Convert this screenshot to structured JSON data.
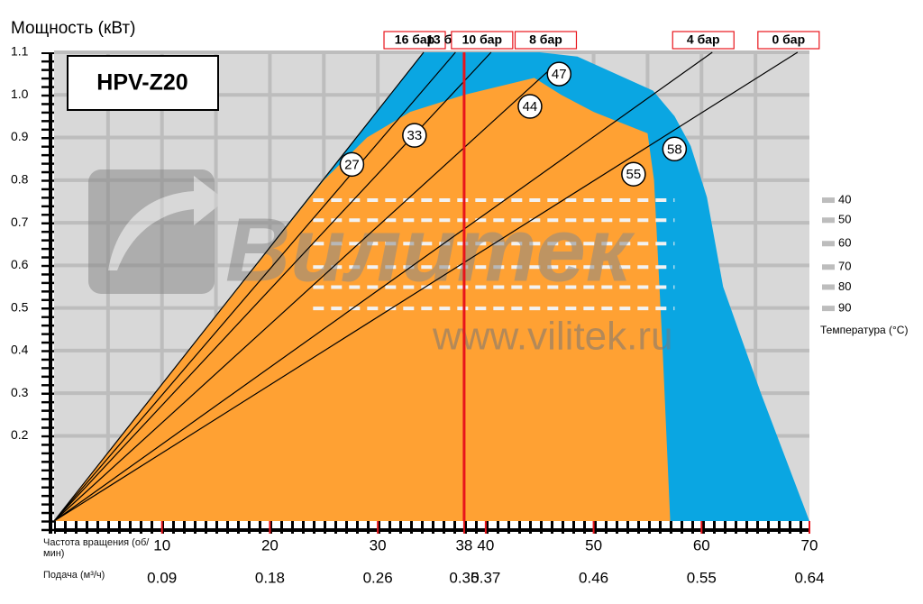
{
  "chart_data": {
    "type": "performance",
    "y_label": "Мощность (кВт)",
    "model": "HPV-Z20",
    "x_label": "Частота вращения (об/мин)",
    "flow_label": "Подача (м³/ч)",
    "xlim": [
      0,
      70
    ],
    "ylim": [
      0,
      1.1
    ],
    "xticks": [
      10,
      20,
      30,
      38,
      40,
      50,
      60,
      70
    ],
    "flow_ticks": [
      0.09,
      0.18,
      0.26,
      0.35,
      0.37,
      0.46,
      0.55,
      0.64
    ],
    "yticks": [
      0.2,
      0.3,
      0.4,
      0.5,
      0.6,
      0.7,
      0.8,
      0.9,
      {
        "value": 1,
        "label": "1.0"
      },
      1.1
    ],
    "xgrid": [
      5,
      10,
      15,
      20,
      25,
      30,
      35,
      40,
      45,
      50,
      55,
      60,
      65
    ],
    "grid": true,
    "areas": [
      {
        "color": "#0aa6e2",
        "x": [
          0,
          34.25,
          40,
          45,
          48.5,
          52,
          55.5,
          57.5,
          59,
          60.5,
          62,
          65.5,
          70
        ],
        "y": [
          0,
          1.1,
          1.1,
          1.1,
          1.09,
          1.05,
          1.01,
          0.95,
          0.88,
          0.76,
          0.55,
          0.3,
          0
        ]
      },
      {
        "color": "#ffa133",
        "x": [
          0,
          25,
          29,
          33,
          38,
          44.5,
          47,
          50,
          53,
          55,
          55.6,
          56.4,
          57.1
        ],
        "y": [
          0,
          0.8,
          0.9,
          0.96,
          1.0,
          1.04,
          1.0,
          0.96,
          0.93,
          0.91,
          0.8,
          0.4,
          0
        ]
      }
    ],
    "pressure_lines": [
      {
        "label": "16 бар",
        "x": 34.25,
        "y": 1.1,
        "boxed": true
      },
      {
        "label": "13 бар",
        "x": 37.2,
        "y": 1.1,
        "boxed": false
      },
      {
        "label": "10 бар",
        "x": 40.5,
        "y": 1.1,
        "boxed": true
      },
      {
        "label": "8 бар",
        "x": 46.4,
        "y": 1.07,
        "boxed": true
      },
      {
        "label": "4 бар",
        "x": 61,
        "y": 1.1,
        "boxed": true
      },
      {
        "label": "0 бар",
        "x": 68.9,
        "y": 1.1,
        "boxed": true
      }
    ],
    "marker_x": 38,
    "marker_color": "#e8141b",
    "annotations": [
      {
        "text": "27",
        "x": 27.6,
        "y": 0.837
      },
      {
        "text": "33",
        "x": 33.4,
        "y": 0.905
      },
      {
        "text": "47",
        "x": 46.8,
        "y": 1.049
      },
      {
        "text": "44",
        "x": 44.1,
        "y": 0.973
      },
      {
        "text": "58",
        "x": 57.5,
        "y": 0.873
      },
      {
        "text": "55",
        "x": 53.7,
        "y": 0.814
      }
    ],
    "temperature": {
      "title": "Температура (°C)",
      "labels": [
        40,
        50,
        60,
        70,
        80,
        90
      ],
      "levels": [
        0.753,
        0.706,
        0.651,
        0.596,
        0.549,
        0.499
      ],
      "xlim": [
        24,
        57.5
      ]
    },
    "watermark": [
      "Вилитек",
      "www.vilitek.ru"
    ]
  }
}
